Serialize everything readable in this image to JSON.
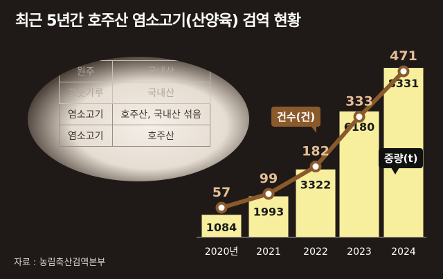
{
  "title": "최근 5년간 호주산 염소고기(산양육) 검역 현황",
  "source": "자료 : 농림축산검역본부",
  "photo_table": {
    "rows": [
      [
        "원주",
        "국내산"
      ],
      [
        "고춧가루",
        "국내산"
      ],
      [
        "염소고기",
        "호주산, 국내산 섞음"
      ],
      [
        "염소고기",
        "호주산"
      ]
    ]
  },
  "colors": {
    "background": "#1f1a17",
    "bar": "#f7ef9e",
    "line": "#8b5a2b",
    "count_label": "#e4bd97",
    "weight_callout": "#111111"
  },
  "chart_data": {
    "type": "bar",
    "categories": [
      "2020년",
      "2021",
      "2022",
      "2023",
      "2024"
    ],
    "series": [
      {
        "name": "중량(t)",
        "type": "bar",
        "values": [
          1084,
          1993,
          3322,
          6180,
          8331
        ]
      },
      {
        "name": "건수(건)",
        "type": "line",
        "values": [
          57,
          99,
          182,
          333,
          471
        ]
      }
    ],
    "title": "최근 5년간 호주산 염소고기(산양육) 검역 현황",
    "xlabel": "",
    "ylabel": "",
    "grid": false,
    "legend": "callouts"
  }
}
